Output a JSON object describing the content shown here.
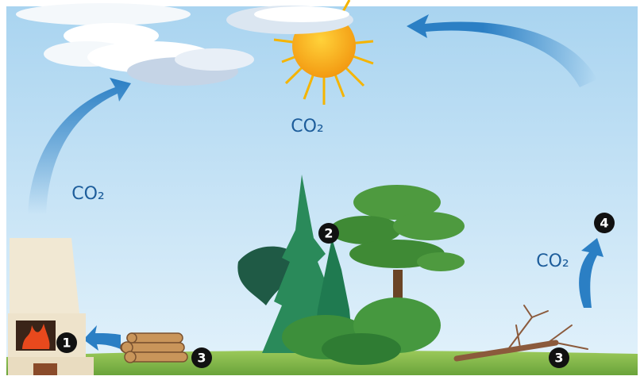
{
  "co2_labels": [
    "CO₂",
    "CO₂",
    "CO₂"
  ],
  "markers": [
    "1",
    "2",
    "3",
    "3",
    "4"
  ]
}
